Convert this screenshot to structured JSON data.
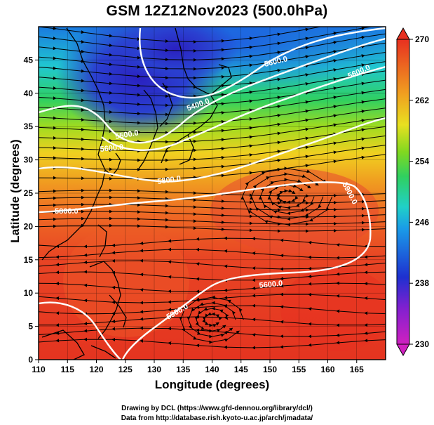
{
  "title": "GSM 12Z12Nov2023 (500.0hPa)",
  "credits": {
    "line1": "Drawing by DCL (https://www.gfd-dennou.org/library/dcl/)",
    "line2": "Data from http://database.rish.kyoto-u.ac.jp/arch/jmadata/"
  },
  "map": {
    "xlabel": "Longitude (degrees)",
    "ylabel": "Latitude  (degrees)",
    "lon_range": [
      110,
      170
    ],
    "lat_range": [
      0,
      50
    ],
    "lon_ticks": [
      "110",
      "115",
      "120",
      "125",
      "130",
      "135",
      "140",
      "145",
      "150",
      "155",
      "160",
      "165"
    ],
    "lat_ticks": [
      "0",
      "5",
      "10",
      "15",
      "20",
      "25",
      "30",
      "35",
      "40",
      "45"
    ],
    "colorbar_min": 230,
    "colorbar_max": 270,
    "colorbar_ticks": [
      "230",
      "238",
      "246",
      "254",
      "262",
      "270"
    ],
    "contour_labels": [
      "5600.0",
      "5400.0",
      "5600.0",
      "5500.0",
      "5600.0",
      "5800.0",
      "5800.0",
      "5900.0",
      "5600.0",
      "5900.0"
    ],
    "colors": {
      "cold": "#c000c0",
      "cool": "#1c2ec8",
      "mid": "#22d0b0",
      "warm_mid": "#88d830",
      "warm": "#f0a020",
      "hot": "#e83020",
      "contour": "#ffffff",
      "streamline": "#000000",
      "coast": "#000000"
    }
  }
}
